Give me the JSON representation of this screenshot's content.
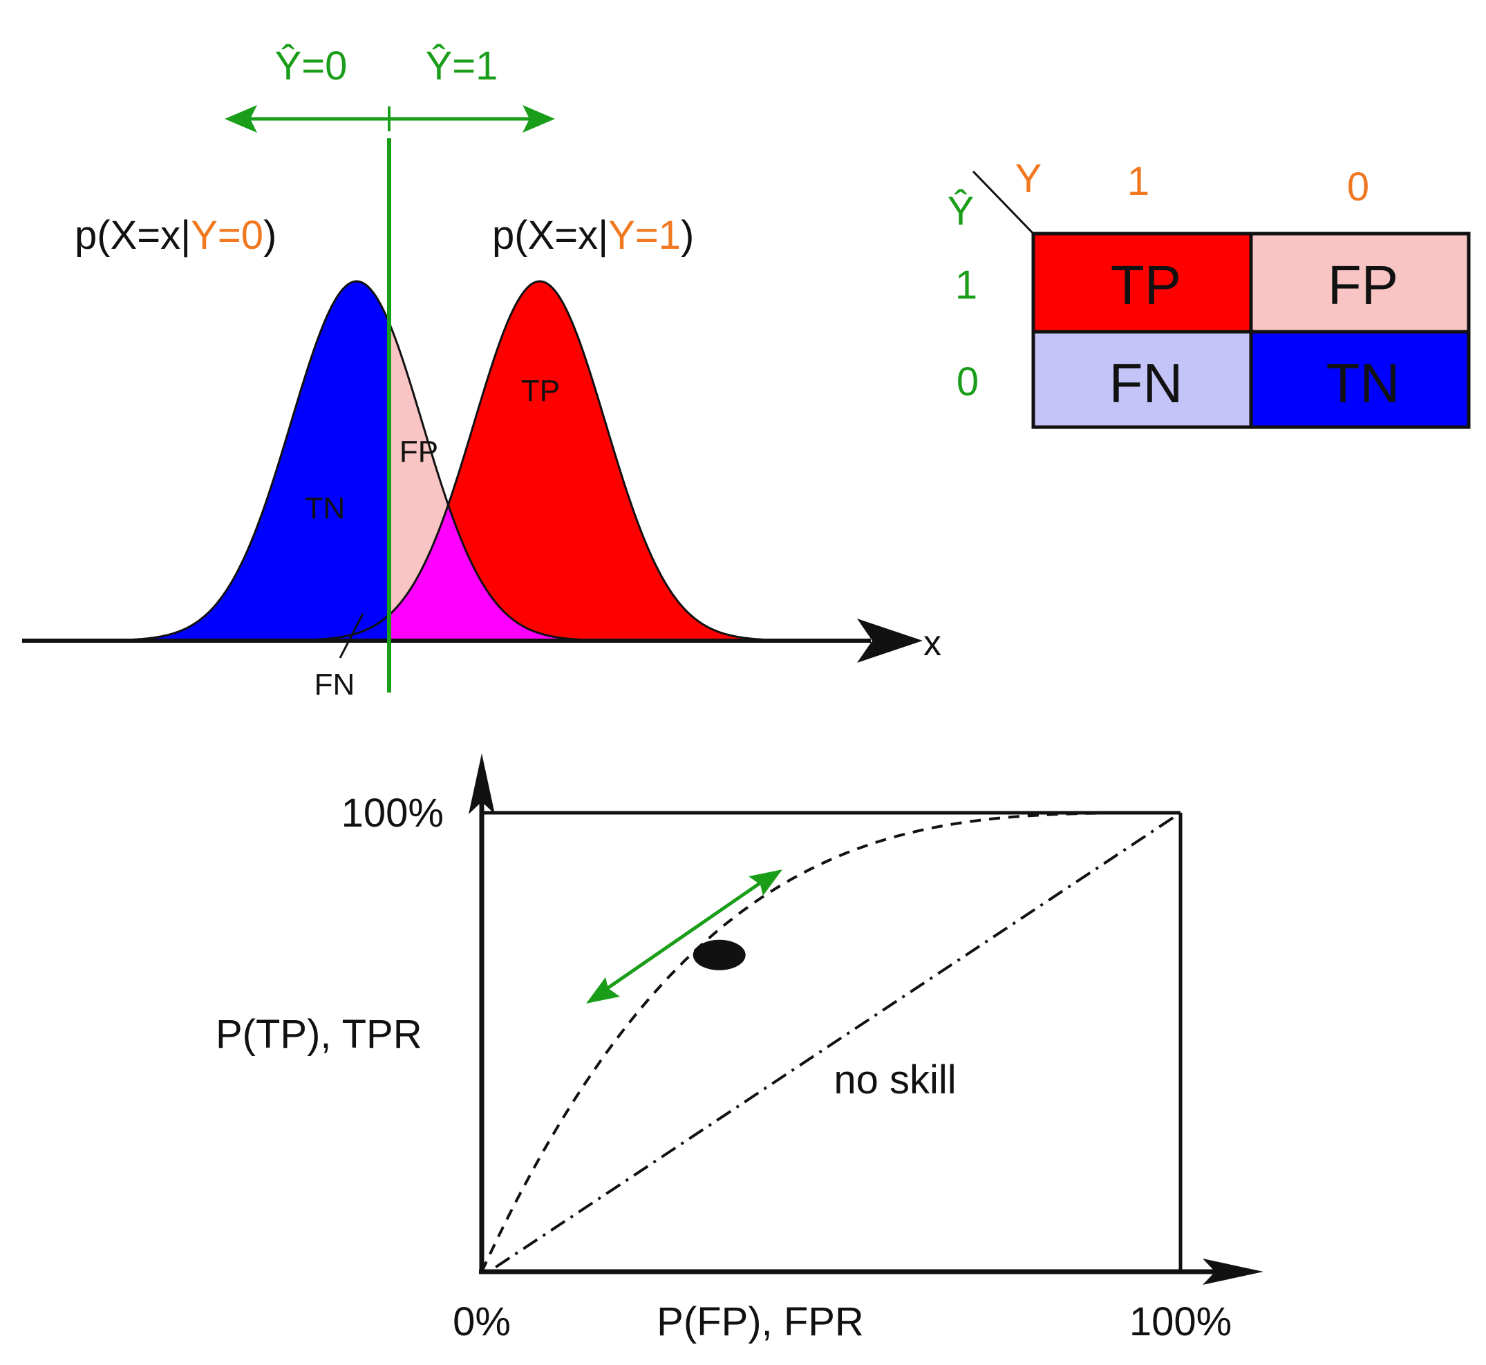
{
  "colors": {
    "green": "#1a9e1a",
    "orange": "#f07820",
    "black": "#111111",
    "tp": "#ff0000",
    "fp": "#f8c4c4",
    "fn": "#c4c4f8",
    "tn": "#0000ff",
    "overlap": "#ff00ff"
  },
  "threshold": {
    "left_label": "Ŷ=0",
    "right_label": "Ŷ=1"
  },
  "distributions": {
    "neg_prefix": "p(X=x|",
    "neg_cond": "Y=0",
    "neg_suffix": ")",
    "pos_prefix": "p(X=x|",
    "pos_cond": "Y=1",
    "pos_suffix": ")",
    "region_tn": "TN",
    "region_fp": "FP",
    "region_tp": "TP",
    "region_fn": "FN",
    "x_axis_label": "x"
  },
  "confusion_matrix": {
    "actual_label": "Y",
    "predicted_label": "Ŷ",
    "col_1": "1",
    "col_0": "0",
    "row_1": "1",
    "row_0": "0",
    "cells": {
      "tp": "TP",
      "fp": "FP",
      "fn": "FN",
      "tn": "TN"
    }
  },
  "roc": {
    "y_top_label": "100%",
    "y_axis_label": "P(TP), TPR",
    "x_left_label": "0%",
    "x_axis_label": "P(FP), FPR",
    "x_right_label": "100%",
    "diagonal_label": "no skill",
    "operating_point": {
      "fpr": 0.34,
      "tpr": 0.69
    }
  }
}
